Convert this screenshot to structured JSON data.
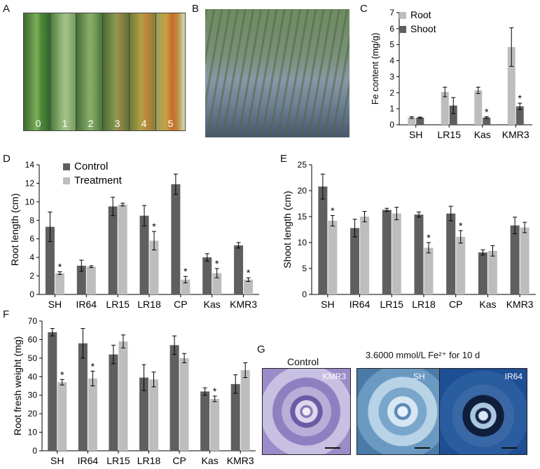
{
  "panels": {
    "a": {
      "letter": "A",
      "scores": [
        "0",
        "1",
        "2",
        "3",
        "4",
        "5"
      ]
    },
    "b": {
      "letter": "B"
    },
    "c": {
      "letter": "C"
    },
    "d": {
      "letter": "D"
    },
    "e": {
      "letter": "E"
    },
    "f": {
      "letter": "F"
    },
    "g": {
      "letter": "G",
      "control_title": "Control",
      "treatment_title": "3.6000 mmol/L Fe²⁺ for 10 d",
      "labels": [
        "KMR3",
        "SH",
        "IR64"
      ]
    }
  },
  "chart_data": [
    {
      "id": "C",
      "type": "bar",
      "ylabel": "Fe content (mg/g)",
      "categories": [
        "SH",
        "LR15",
        "Kas",
        "KMR3"
      ],
      "ylim": [
        0,
        7
      ],
      "yticks": [
        0,
        1,
        2,
        3,
        4,
        5,
        6,
        7
      ],
      "legend": "top-left",
      "series": [
        {
          "name": "Root",
          "color": "#bdbdbd",
          "values": [
            0.45,
            2.05,
            2.15,
            4.85
          ],
          "errors": [
            0.05,
            0.3,
            0.2,
            1.2
          ],
          "sig": [
            false,
            false,
            false,
            false
          ]
        },
        {
          "name": "Shoot",
          "color": "#5f5f5f",
          "values": [
            0.45,
            1.2,
            0.45,
            1.15
          ],
          "errors": [
            0.03,
            0.5,
            0.05,
            0.2
          ],
          "sig": [
            false,
            false,
            true,
            true
          ]
        }
      ]
    },
    {
      "id": "D",
      "type": "bar",
      "ylabel": "Root length (cm)",
      "categories": [
        "SH",
        "IR64",
        "LR15",
        "LR18",
        "CP",
        "Kas",
        "KMR3"
      ],
      "ylim": [
        0,
        14
      ],
      "yticks": [
        0,
        2,
        4,
        6,
        8,
        10,
        12,
        14
      ],
      "legend": "top-left",
      "series": [
        {
          "name": "Control",
          "color": "#5f5f5f",
          "values": [
            7.3,
            3.1,
            9.5,
            8.5,
            11.9,
            4.0,
            5.3
          ],
          "errors": [
            1.6,
            0.6,
            1.0,
            1.1,
            1.1,
            0.4,
            0.3
          ],
          "sig": [
            false,
            false,
            false,
            false,
            false,
            false,
            false
          ]
        },
        {
          "name": "Treatment",
          "color": "#bdbdbd",
          "values": [
            2.3,
            3.0,
            9.7,
            5.8,
            1.6,
            2.3,
            1.6
          ],
          "errors": [
            0.15,
            0.1,
            0.15,
            1.0,
            0.35,
            0.5,
            0.2
          ],
          "sig": [
            true,
            false,
            false,
            true,
            true,
            true,
            true
          ]
        }
      ]
    },
    {
      "id": "E",
      "type": "bar",
      "ylabel": "Shoot length (cm)",
      "categories": [
        "SH",
        "IR64",
        "LR15",
        "LR18",
        "CP",
        "Kas",
        "KMR3"
      ],
      "ylim": [
        0,
        25
      ],
      "yticks": [
        0,
        5,
        10,
        15,
        20,
        25
      ],
      "series": [
        {
          "name": "Control",
          "color": "#5f5f5f",
          "values": [
            20.8,
            12.8,
            16.3,
            15.4,
            15.6,
            8.1,
            13.3
          ],
          "errors": [
            2.4,
            1.7,
            0.3,
            0.5,
            1.4,
            0.5,
            1.6
          ],
          "sig": [
            false,
            false,
            false,
            false,
            false,
            false,
            false
          ]
        },
        {
          "name": "Treatment",
          "color": "#bdbdbd",
          "values": [
            14.2,
            15.0,
            15.6,
            9.0,
            11.1,
            8.4,
            12.9
          ],
          "errors": [
            1.0,
            1.0,
            1.2,
            1.0,
            1.2,
            1.0,
            1.0
          ],
          "sig": [
            true,
            false,
            false,
            true,
            true,
            false,
            false
          ]
        }
      ]
    },
    {
      "id": "F",
      "type": "bar",
      "ylabel": "Root fresh weight (mg)",
      "categories": [
        "SH",
        "IR64",
        "LR15",
        "LR18",
        "CP",
        "Kas",
        "KMR3"
      ],
      "ylim": [
        0,
        70
      ],
      "yticks": [
        0,
        10,
        20,
        30,
        40,
        50,
        60,
        70
      ],
      "series": [
        {
          "name": "Control",
          "color": "#5f5f5f",
          "values": [
            64,
            58,
            52,
            39.5,
            57,
            32,
            36
          ],
          "errors": [
            2,
            8,
            5,
            7,
            5,
            2,
            5
          ],
          "sig": [
            false,
            false,
            false,
            false,
            false,
            false,
            false
          ]
        },
        {
          "name": "Treatment",
          "color": "#bdbdbd",
          "values": [
            37,
            39,
            59,
            38.5,
            50,
            28,
            43.5
          ],
          "errors": [
            1.5,
            4,
            3.5,
            4,
            2.5,
            1.5,
            4
          ],
          "sig": [
            true,
            true,
            false,
            false,
            false,
            true,
            false
          ]
        }
      ]
    }
  ]
}
